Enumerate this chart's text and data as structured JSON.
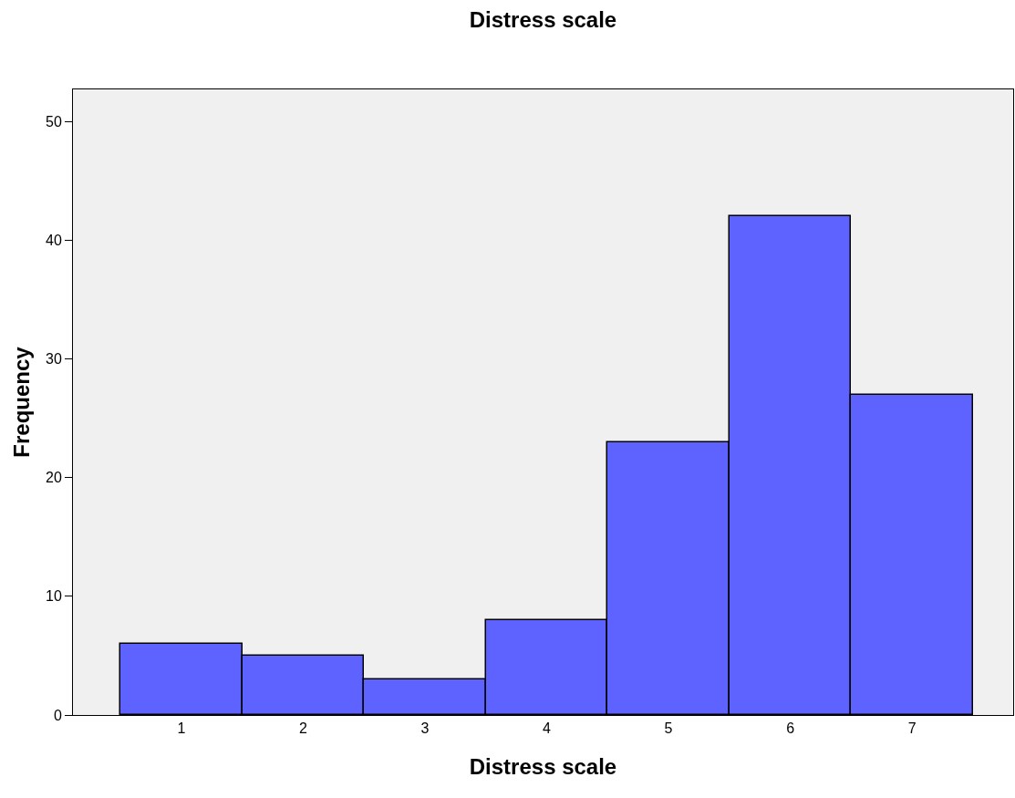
{
  "chart_data": {
    "type": "histogram",
    "title": "Distress scale",
    "xlabel": "Distress scale",
    "ylabel": "Frequency",
    "bins": [
      0.5,
      1.5,
      2.5,
      3.5,
      4.5,
      5.5,
      6.5,
      7.5
    ],
    "values": [
      6,
      5,
      3,
      8,
      23,
      42,
      27
    ],
    "color": "#5e62ff",
    "xlim": [
      0.11,
      7.83
    ],
    "xticks": [
      1,
      2,
      3,
      4,
      5,
      6,
      7
    ],
    "ylim": [
      0,
      52.7
    ],
    "yticks": [
      0,
      10,
      20,
      30,
      40,
      50
    ],
    "grid": false
  }
}
